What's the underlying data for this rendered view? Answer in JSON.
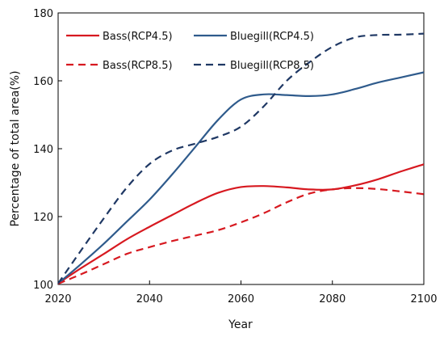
{
  "chart_data": {
    "type": "line",
    "title": "",
    "xlabel": "Year",
    "ylabel": "Percentage of total area(%)",
    "xlim": [
      2020,
      2100
    ],
    "ylim": [
      100,
      180
    ],
    "xticks": [
      2020,
      2040,
      2060,
      2080,
      2100
    ],
    "yticks": [
      100,
      120,
      140,
      160,
      180
    ],
    "grid": false,
    "legend_position": "top",
    "series": [
      {
        "name": "Bass(RCP4.5)",
        "color": "#d71920",
        "dash": "solid",
        "x": [
          2020,
          2025,
          2030,
          2035,
          2040,
          2045,
          2050,
          2055,
          2060,
          2065,
          2070,
          2075,
          2080,
          2085,
          2090,
          2095,
          2100
        ],
        "y": [
          100.3,
          104.8,
          109.0,
          113.3,
          117.0,
          120.5,
          124.0,
          127.0,
          128.7,
          129.0,
          128.6,
          128.0,
          128.0,
          129.2,
          131.0,
          133.3,
          135.4
        ]
      },
      {
        "name": "Bluegill(RCP4.5)",
        "color": "#2f5b8c",
        "dash": "solid",
        "x": [
          2020,
          2025,
          2030,
          2035,
          2040,
          2045,
          2050,
          2055,
          2060,
          2065,
          2070,
          2075,
          2080,
          2085,
          2090,
          2095,
          2100
        ],
        "y": [
          100.3,
          106.0,
          112.0,
          118.5,
          125.0,
          132.5,
          140.5,
          148.5,
          154.5,
          156.0,
          155.8,
          155.5,
          156.0,
          157.6,
          159.5,
          161.0,
          162.5
        ]
      },
      {
        "name": "Bass(RCP8.5)",
        "color": "#d71920",
        "dash": "dashed",
        "x": [
          2020,
          2025,
          2030,
          2035,
          2040,
          2045,
          2050,
          2055,
          2060,
          2065,
          2070,
          2075,
          2080,
          2085,
          2090,
          2095,
          2100
        ],
        "y": [
          100.2,
          103.0,
          106.0,
          109.0,
          111.0,
          112.8,
          114.4,
          116.0,
          118.3,
          121.0,
          124.2,
          126.8,
          128.0,
          128.4,
          128.1,
          127.4,
          126.6
        ]
      },
      {
        "name": "Bluegill(RCP8.5)",
        "color": "#1f3864",
        "dash": "dashed",
        "x": [
          2020,
          2025,
          2030,
          2035,
          2040,
          2045,
          2050,
          2055,
          2060,
          2065,
          2070,
          2075,
          2080,
          2085,
          2090,
          2095,
          2100
        ],
        "y": [
          100.3,
          110.0,
          119.5,
          128.5,
          135.5,
          139.5,
          141.5,
          143.5,
          146.5,
          152.5,
          160.0,
          165.5,
          170.0,
          172.8,
          173.5,
          173.6,
          173.9
        ]
      }
    ]
  }
}
